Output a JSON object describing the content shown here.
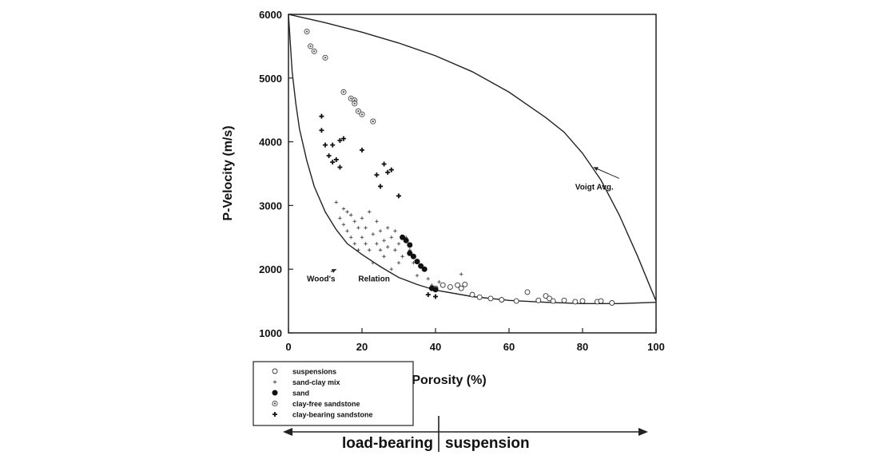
{
  "chart_data": {
    "type": "scatter",
    "title": "",
    "xlabel": "Porosity (%)",
    "ylabel": "P-Velocity (m/s)",
    "xlim": [
      0,
      100
    ],
    "ylim": [
      1000,
      6000
    ],
    "x_ticks": [
      "0",
      "20",
      "40",
      "60",
      "80",
      "100"
    ],
    "y_ticks": [
      "1000",
      "2000",
      "3000",
      "4000",
      "5000",
      "6000"
    ],
    "grid": false,
    "legend_position": "bottom-left",
    "curves": [
      {
        "name": "Voigt Avg.",
        "points": [
          [
            0,
            6000
          ],
          [
            10,
            5870
          ],
          [
            20,
            5720
          ],
          [
            30,
            5550
          ],
          [
            40,
            5350
          ],
          [
            50,
            5100
          ],
          [
            60,
            4780
          ],
          [
            70,
            4380
          ],
          [
            75,
            4150
          ],
          [
            80,
            3820
          ],
          [
            85,
            3400
          ],
          [
            90,
            2850
          ],
          [
            95,
            2200
          ],
          [
            98,
            1780
          ],
          [
            100,
            1500
          ]
        ]
      },
      {
        "name": "Wood's Relation",
        "points": [
          [
            0,
            6000
          ],
          [
            1,
            5100
          ],
          [
            2,
            4600
          ],
          [
            3,
            4200
          ],
          [
            5,
            3700
          ],
          [
            7,
            3300
          ],
          [
            10,
            2900
          ],
          [
            13,
            2620
          ],
          [
            16,
            2400
          ],
          [
            20,
            2230
          ],
          [
            25,
            2040
          ],
          [
            30,
            1870
          ],
          [
            35,
            1760
          ],
          [
            40,
            1670
          ],
          [
            50,
            1570
          ],
          [
            60,
            1510
          ],
          [
            70,
            1480
          ],
          [
            80,
            1460
          ],
          [
            90,
            1460
          ],
          [
            100,
            1480
          ]
        ]
      }
    ],
    "annotations": [
      {
        "text": "Voigt Avg.",
        "x": 78,
        "y": 3250,
        "arrow_to": [
          83,
          3600
        ]
      },
      {
        "text": "Wood's",
        "x": 5,
        "y": 1810,
        "arrow_to": [
          13,
          2000
        ]
      },
      {
        "text": "Relation",
        "x": 19,
        "y": 1810
      }
    ],
    "series": [
      {
        "name": "suspensions",
        "marker": "open-circle",
        "points": [
          [
            40,
            1700
          ],
          [
            42,
            1750
          ],
          [
            44,
            1720
          ],
          [
            46,
            1750
          ],
          [
            47,
            1700
          ],
          [
            48,
            1760
          ],
          [
            50,
            1600
          ],
          [
            52,
            1560
          ],
          [
            55,
            1540
          ],
          [
            58,
            1520
          ],
          [
            62,
            1500
          ],
          [
            65,
            1640
          ],
          [
            68,
            1510
          ],
          [
            70,
            1580
          ],
          [
            71,
            1540
          ],
          [
            72,
            1500
          ],
          [
            75,
            1510
          ],
          [
            78,
            1490
          ],
          [
            80,
            1500
          ],
          [
            84,
            1490
          ],
          [
            85,
            1500
          ],
          [
            88,
            1470
          ]
        ]
      },
      {
        "name": "sand-clay mix",
        "marker": "small-plus",
        "points": [
          [
            13,
            3050
          ],
          [
            14,
            2800
          ],
          [
            15,
            2950
          ],
          [
            15,
            2700
          ],
          [
            16,
            2900
          ],
          [
            16,
            2600
          ],
          [
            17,
            2850
          ],
          [
            17,
            2500
          ],
          [
            18,
            2750
          ],
          [
            18,
            2400
          ],
          [
            19,
            2650
          ],
          [
            19,
            2300
          ],
          [
            20,
            2800
          ],
          [
            20,
            2500
          ],
          [
            21,
            2400
          ],
          [
            21,
            2650
          ],
          [
            22,
            2900
          ],
          [
            22,
            2300
          ],
          [
            23,
            2550
          ],
          [
            23,
            2100
          ],
          [
            24,
            2400
          ],
          [
            24,
            2750
          ],
          [
            25,
            2300
          ],
          [
            25,
            2600
          ],
          [
            26,
            2200
          ],
          [
            26,
            2450
          ],
          [
            27,
            2350
          ],
          [
            27,
            2650
          ],
          [
            28,
            2500
          ],
          [
            28,
            2000
          ],
          [
            29,
            2600
          ],
          [
            29,
            2300
          ],
          [
            30,
            2400
          ],
          [
            30,
            2100
          ],
          [
            31,
            2200
          ],
          [
            32,
            2500
          ],
          [
            33,
            2300
          ],
          [
            34,
            2100
          ],
          [
            35,
            1900
          ],
          [
            38,
            1850
          ],
          [
            39,
            1750
          ],
          [
            41,
            1800
          ],
          [
            47,
            1920
          ]
        ]
      },
      {
        "name": "sand",
        "marker": "filled-circle",
        "points": [
          [
            31,
            2500
          ],
          [
            32,
            2450
          ],
          [
            33,
            2380
          ],
          [
            33,
            2250
          ],
          [
            34,
            2200
          ],
          [
            35,
            2120
          ],
          [
            36,
            2050
          ],
          [
            37,
            2000
          ],
          [
            39,
            1700
          ],
          [
            40,
            1680
          ]
        ]
      },
      {
        "name": "clay-free sandstone",
        "marker": "dot-circle",
        "points": [
          [
            5,
            5730
          ],
          [
            6,
            5500
          ],
          [
            7,
            5420
          ],
          [
            10,
            5320
          ],
          [
            15,
            4780
          ],
          [
            17,
            4680
          ],
          [
            18,
            4650
          ],
          [
            19,
            4480
          ],
          [
            20,
            4430
          ],
          [
            23,
            4320
          ],
          [
            18,
            4600
          ]
        ]
      },
      {
        "name": "clay-bearing sandstone",
        "marker": "filled-plus",
        "points": [
          [
            9,
            4400
          ],
          [
            9,
            4180
          ],
          [
            10,
            3950
          ],
          [
            11,
            3780
          ],
          [
            12,
            3680
          ],
          [
            13,
            3720
          ],
          [
            14,
            3600
          ],
          [
            12,
            3950
          ],
          [
            14,
            4020
          ],
          [
            15,
            4050
          ],
          [
            20,
            3870
          ],
          [
            24,
            3480
          ],
          [
            25,
            3300
          ],
          [
            26,
            3650
          ],
          [
            27,
            3520
          ],
          [
            28,
            3560
          ],
          [
            30,
            3150
          ],
          [
            38,
            1600
          ],
          [
            40,
            1570
          ]
        ]
      }
    ],
    "regime_labels": [
      "load-bearing",
      "suspension"
    ]
  }
}
